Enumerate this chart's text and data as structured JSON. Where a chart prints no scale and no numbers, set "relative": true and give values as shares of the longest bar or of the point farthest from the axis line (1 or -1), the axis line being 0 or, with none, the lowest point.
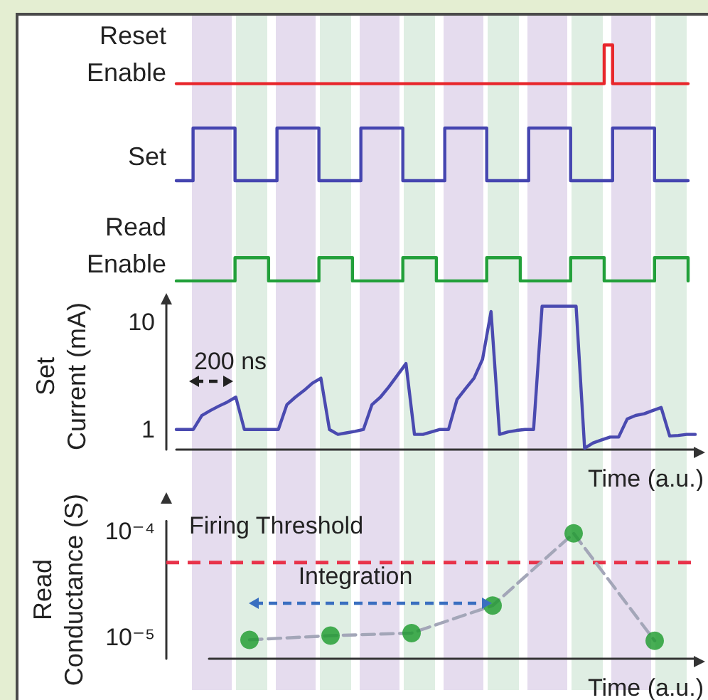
{
  "chart_data": [
    {
      "type": "step",
      "ylabel": "Reset\nEnable",
      "categories": [
        null,
        null,
        null,
        null,
        null,
        null,
        null,
        null,
        null,
        null,
        null,
        null,
        null,
        null,
        null,
        null,
        null,
        null,
        null,
        null,
        null,
        null,
        null,
        null,
        null,
        null,
        null,
        null,
        null,
        null,
        null,
        null,
        null,
        null,
        null,
        null,
        null,
        null,
        null,
        null,
        null,
        null,
        null,
        null,
        null,
        null,
        null,
        null,
        null,
        null,
        null,
        null,
        null,
        null,
        null,
        null,
        null,
        null,
        null,
        null,
        null,
        null
      ],
      "values": [
        0,
        0,
        0,
        0,
        0,
        0,
        0,
        0,
        0,
        0,
        0,
        0,
        0,
        0,
        0,
        0,
        0,
        0,
        0,
        0,
        0,
        0,
        0,
        0,
        0,
        0,
        0,
        0,
        0,
        0,
        0,
        0,
        0,
        0,
        0,
        0,
        0,
        0,
        0,
        0,
        0,
        0,
        0,
        0,
        0,
        0,
        0,
        0,
        0,
        0,
        0,
        1,
        0,
        0,
        0,
        0,
        0,
        0,
        0,
        0,
        0,
        0
      ],
      "color": "#e8262b",
      "relative": true,
      "tick_labels": false,
      "marker": "none"
    },
    {
      "type": "step",
      "ylabel": "Set",
      "categories": [
        null,
        null,
        null,
        null,
        null,
        null,
        null,
        null,
        null,
        null,
        null,
        null,
        null,
        null,
        null,
        null,
        null,
        null,
        null,
        null,
        null,
        null,
        null,
        null,
        null,
        null,
        null,
        null,
        null,
        null,
        null,
        null,
        null,
        null,
        null,
        null,
        null,
        null,
        null,
        null,
        null,
        null,
        null,
        null,
        null,
        null,
        null,
        null,
        null,
        null,
        null,
        null,
        null,
        null,
        null,
        null,
        null,
        null,
        null,
        null,
        null,
        null
      ],
      "values": [
        0,
        0,
        1,
        1,
        1,
        1,
        1,
        0,
        0,
        0,
        0,
        0,
        1,
        1,
        1,
        1,
        1,
        0,
        0,
        0,
        0,
        0,
        1,
        1,
        1,
        1,
        1,
        0,
        0,
        0,
        0,
        0,
        1,
        1,
        1,
        1,
        1,
        0,
        0,
        0,
        0,
        0,
        1,
        1,
        1,
        1,
        1,
        0,
        0,
        0,
        0,
        0,
        1,
        1,
        1,
        1,
        1,
        0,
        0,
        0,
        0,
        0
      ],
      "color": "#4545b0",
      "relative": true,
      "tick_labels": false,
      "marker": "none"
    },
    {
      "type": "step",
      "ylabel": "Read\nEnable",
      "categories": [
        null,
        null,
        null,
        null,
        null,
        null,
        null,
        null,
        null,
        null,
        null,
        null,
        null,
        null,
        null,
        null,
        null,
        null,
        null,
        null,
        null,
        null,
        null,
        null,
        null,
        null,
        null,
        null,
        null,
        null,
        null,
        null,
        null,
        null,
        null,
        null,
        null,
        null,
        null,
        null,
        null,
        null,
        null,
        null,
        null,
        null,
        null,
        null,
        null,
        null,
        null,
        null,
        null,
        null,
        null,
        null,
        null,
        null,
        null,
        null,
        null,
        null
      ],
      "values": [
        0,
        0,
        0,
        0,
        0,
        0,
        0,
        1,
        1,
        1,
        1,
        0,
        0,
        0,
        0,
        0,
        0,
        1,
        1,
        1,
        1,
        0,
        0,
        0,
        0,
        0,
        0,
        1,
        1,
        1,
        1,
        0,
        0,
        0,
        0,
        0,
        0,
        1,
        1,
        1,
        1,
        0,
        0,
        0,
        0,
        0,
        0,
        1,
        1,
        1,
        1,
        0,
        0,
        0,
        0,
        0,
        0,
        1,
        1,
        1,
        1,
        0
      ],
      "color": "#22a03a",
      "relative": true,
      "tick_labels": false,
      "marker": "none"
    },
    {
      "type": "line",
      "ylabel": "Set\nCurrent (mA)",
      "xlabel": "Time (a.u.)",
      "categories": [
        null,
        null,
        null,
        null,
        null,
        null,
        null,
        null,
        null,
        null,
        null,
        null,
        null,
        null,
        null,
        null,
        null,
        null,
        null,
        null,
        null,
        null,
        null,
        null,
        null,
        null,
        null,
        null,
        null,
        null,
        null,
        null,
        null,
        null,
        null,
        null,
        null,
        null,
        null,
        null,
        null,
        null,
        null,
        null,
        null,
        null,
        null,
        null,
        null,
        null,
        null,
        null,
        null,
        null,
        null,
        null,
        null,
        null,
        null,
        null,
        null,
        null
      ],
      "values": [
        1.0,
        1.0,
        1.0,
        1.35,
        1.5,
        1.65,
        1.8,
        2.0,
        1.0,
        1.0,
        1.0,
        1.0,
        1.0,
        1.7,
        2.0,
        2.3,
        2.7,
        3.0,
        1.0,
        0.9,
        0.93,
        0.96,
        1.0,
        1.7,
        2.0,
        2.5,
        3.2,
        4.1,
        0.9,
        0.9,
        0.95,
        1.0,
        1.0,
        1.9,
        2.4,
        3.0,
        4.5,
        12.5,
        0.9,
        0.95,
        0.98,
        1.0,
        1.0,
        14,
        14,
        14,
        14,
        14,
        0.67,
        0.75,
        0.8,
        0.85,
        0.85,
        1.25,
        1.35,
        1.4,
        1.5,
        1.6,
        0.87,
        0.88,
        0.9,
        0.9
      ],
      "color": "#4a4ab0",
      "marker": "none",
      "log": true,
      "ylim": [
        0.65,
        15
      ],
      "yticks": [
        1,
        10
      ],
      "tick_labels": "y",
      "annotations": [
        "200 ns"
      ]
    },
    {
      "type": "scatter",
      "ylabel": "Read\nConductance (S)",
      "xlabel": "Time (a.u.)",
      "log": true,
      "ylim": [
        6.3e-06,
        0.000126
      ],
      "yticks": [
        {
          "value": 1e-05,
          "label": "10⁻⁵"
        },
        {
          "value": 0.0001,
          "label": "10⁻⁴"
        }
      ],
      "tick_labels": "y",
      "categories": [
        null,
        null,
        null,
        null,
        null,
        null
      ],
      "marker": "circle",
      "series": [
        {
          "type": "line",
          "color": "#a3a6b8",
          "values": [
            9.5e-06,
            1.04e-05,
            1.1e-05,
            2e-05,
            9.6e-05,
            9.3e-06
          ],
          "marker": "none",
          "line_style": "dashed"
        },
        {
          "color": "#1a9a2a",
          "values": [
            9.5e-06,
            1.04e-05,
            1.1e-05,
            2e-05,
            9.6e-05,
            9.3e-06
          ]
        }
      ],
      "ref_lines": [
        {
          "axis": "y",
          "value": 5.1e-05,
          "label": "Firing Threshold",
          "color": "#e8334a",
          "line_style": "dashed"
        }
      ],
      "annotations": [
        "Integration"
      ]
    }
  ]
}
